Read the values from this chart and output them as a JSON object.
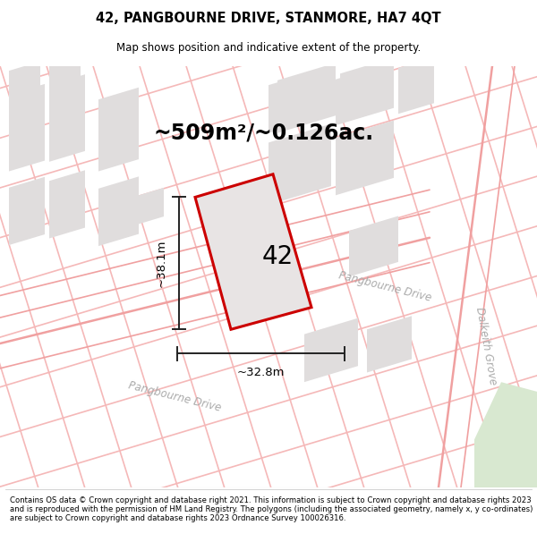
{
  "title_line1": "42, PANGBOURNE DRIVE, STANMORE, HA7 4QT",
  "title_line2": "Map shows position and indicative extent of the property.",
  "area_text": "~509m²/~0.126ac.",
  "plot_number": "42",
  "dim_vertical": "~38.1m",
  "dim_horizontal": "~32.8m",
  "footer_text": "Contains OS data © Crown copyright and database right 2021. This information is subject to Crown copyright and database rights 2023 and is reproduced with the permission of HM Land Registry. The polygons (including the associated geometry, namely x, y co-ordinates) are subject to Crown copyright and database rights 2023 Ordnance Survey 100026316.",
  "map_bg": "#ffffff",
  "road_line_color": "#f5b8b8",
  "road_line_color2": "#f0a0a0",
  "block_color": "#e0dddd",
  "block_color2": "#d8d4d0",
  "plot_fill": "#e8e4e4",
  "plot_edge": "#cc0000",
  "street_label_color": "#aaaaaa",
  "green_area": "#d8e8d0",
  "dim_color": "#222222"
}
